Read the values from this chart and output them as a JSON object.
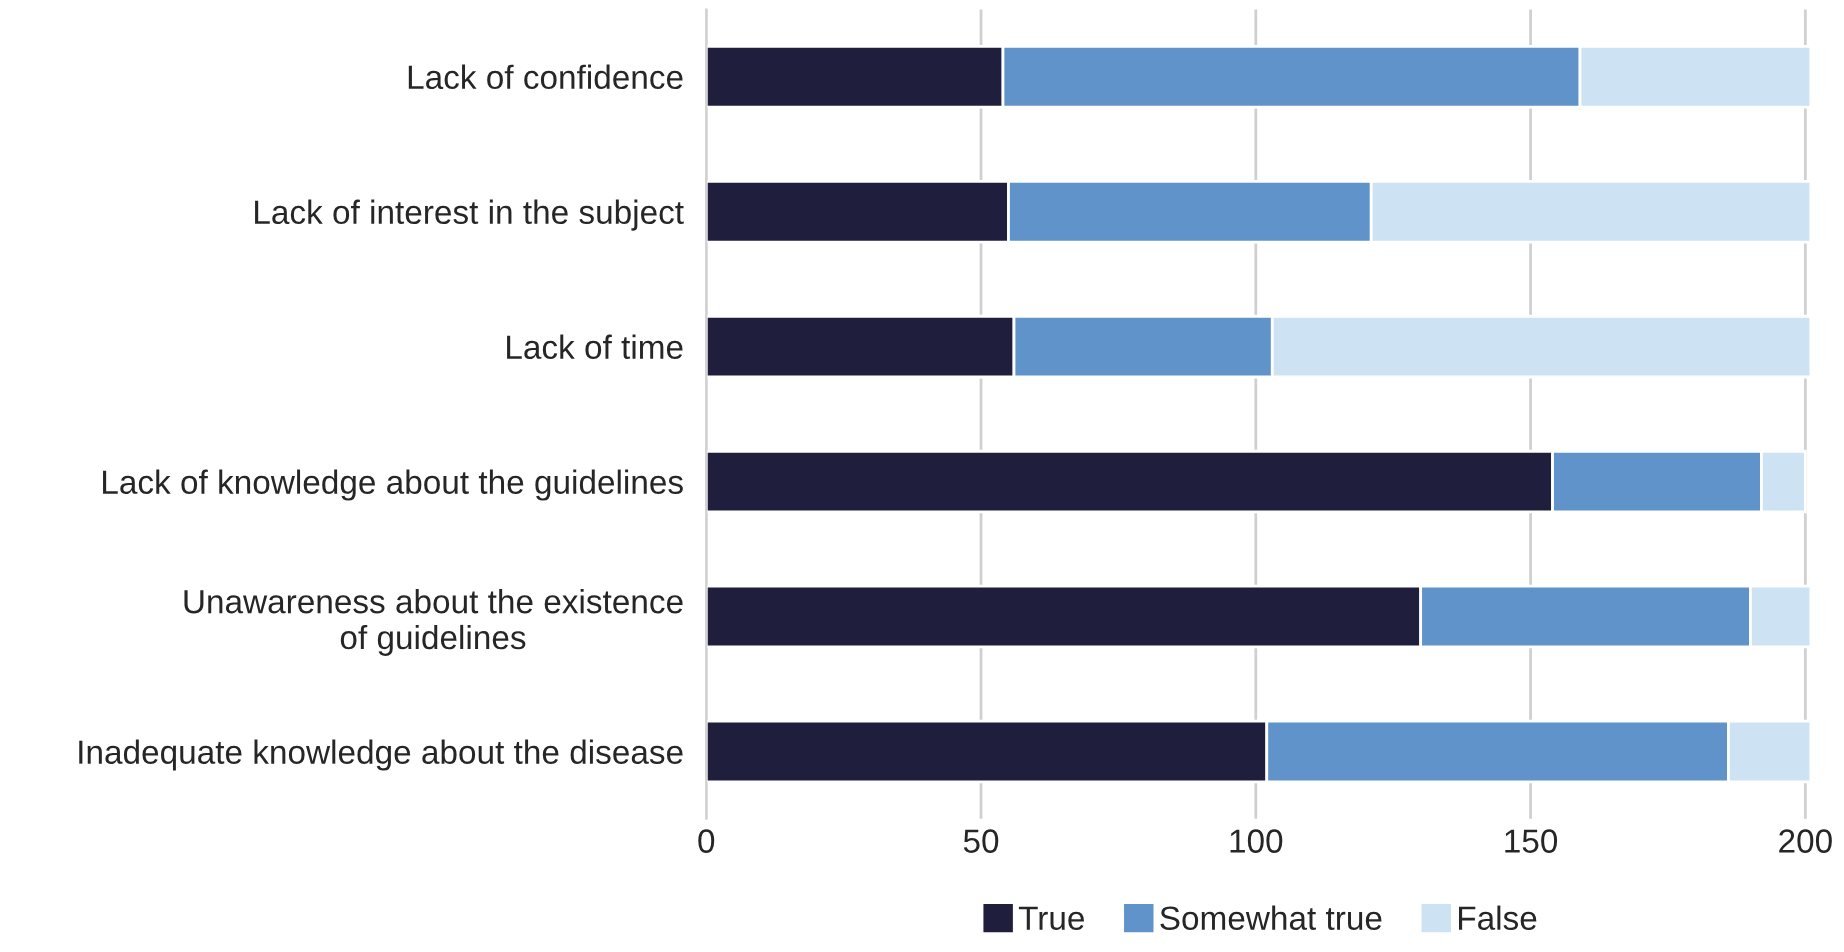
{
  "chart_data": {
    "type": "bar",
    "orientation": "horizontal",
    "stacked": true,
    "categories": [
      "Lack of confidence",
      "Lack of interest in the subject",
      "Lack of time",
      "Lack of knowledge about the guidelines",
      "Unawareness about the existence\nof guidelines",
      "Inadequate knowledge about the disease"
    ],
    "series": [
      {
        "name": "True",
        "color": "#1f1f3d",
        "values": [
          54,
          55,
          56,
          154,
          130,
          102
        ]
      },
      {
        "name": "Somewhat true",
        "color": "#5f93c9",
        "values": [
          105,
          66,
          47,
          38,
          60,
          84
        ]
      },
      {
        "name": "False",
        "color": "#cde3f4",
        "values": [
          42,
          80,
          98,
          8,
          11,
          15
        ]
      }
    ],
    "xlim": [
      0,
      202
    ],
    "xticks": [
      0,
      50,
      100,
      150,
      200
    ],
    "grid": "x",
    "legend": "bottom"
  }
}
